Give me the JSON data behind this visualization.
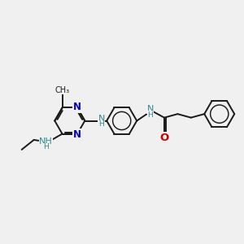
{
  "bg_color": "#f0f0f0",
  "bond_color": "#1a1a1a",
  "n_ring_color": "#0000cc",
  "n_nh_color": "#2d8b8b",
  "o_color": "#cc0000",
  "bond_lw": 1.4,
  "font_size_ring_n": 8.5,
  "font_size_nh": 8.0,
  "font_size_atom": 7.5,
  "dpi": 100,
  "figsize": [
    3.0,
    3.0
  ],
  "xlim": [
    0,
    10
  ],
  "ylim": [
    2,
    8
  ]
}
